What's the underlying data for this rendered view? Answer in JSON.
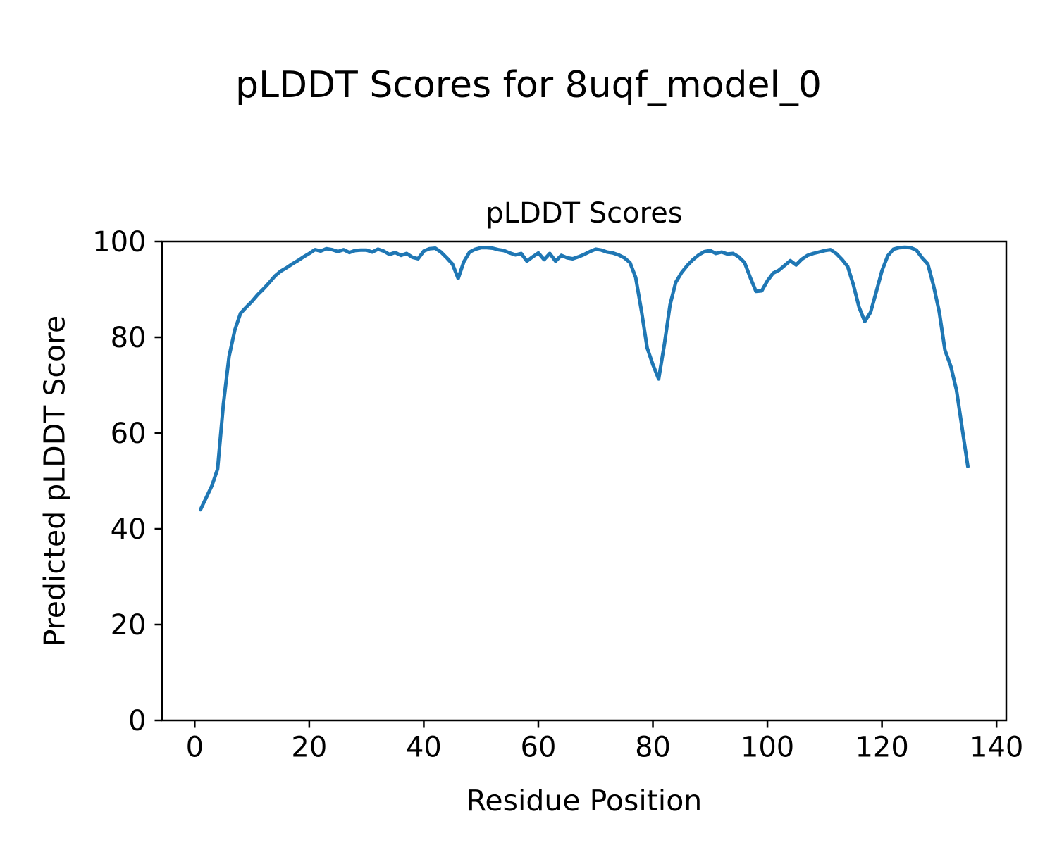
{
  "figure": {
    "suptitle": "pLDDT Scores for 8uqf_model_0",
    "background_color": "#ffffff",
    "text_color": "#000000"
  },
  "chart_data": {
    "type": "line",
    "suptitle": "pLDDT Scores for 8uqf_model_0",
    "title": "pLDDT Scores",
    "xlabel": "Residue Position",
    "ylabel": "Predicted pLDDT Score",
    "x_ticks": [
      0,
      20,
      40,
      60,
      80,
      100,
      120,
      140
    ],
    "y_ticks": [
      0,
      20,
      40,
      60,
      80,
      100
    ],
    "xlim": [
      -5.7,
      141.7
    ],
    "ylim": [
      0,
      100
    ],
    "grid": false,
    "legend": null,
    "line_color": "#1f77b4",
    "line_width": 5,
    "frame_color": "#000000",
    "series": [
      {
        "name": "pLDDT",
        "x": [
          1,
          2,
          3,
          4,
          5,
          6,
          7,
          8,
          9,
          10,
          11,
          12,
          13,
          14,
          15,
          16,
          17,
          18,
          19,
          20,
          21,
          22,
          23,
          24,
          25,
          26,
          27,
          28,
          29,
          30,
          31,
          32,
          33,
          34,
          35,
          36,
          37,
          38,
          39,
          40,
          41,
          42,
          43,
          44,
          45,
          46,
          47,
          48,
          49,
          50,
          51,
          52,
          53,
          54,
          55,
          56,
          57,
          58,
          59,
          60,
          61,
          62,
          63,
          64,
          65,
          66,
          67,
          68,
          69,
          70,
          71,
          72,
          73,
          74,
          75,
          76,
          77,
          78,
          79,
          80,
          81,
          82,
          83,
          84,
          85,
          86,
          87,
          88,
          89,
          90,
          91,
          92,
          93,
          94,
          95,
          96,
          97,
          98,
          99,
          100,
          101,
          102,
          103,
          104,
          105,
          106,
          107,
          108,
          109,
          110,
          111,
          112,
          113,
          114,
          115,
          116,
          117,
          118,
          119,
          120,
          121,
          122,
          123,
          124,
          125,
          126,
          127,
          128,
          129,
          130,
          131,
          132,
          133,
          134,
          135
        ],
        "y": [
          44.0,
          46.5,
          49.0,
          52.5,
          66.0,
          76.0,
          81.5,
          85.0,
          86.3,
          87.5,
          88.9,
          90.1,
          91.4,
          92.8,
          93.8,
          94.5,
          95.3,
          96.0,
          96.8,
          97.5,
          98.3,
          98.0,
          98.5,
          98.3,
          97.9,
          98.3,
          97.7,
          98.1,
          98.2,
          98.2,
          97.8,
          98.4,
          98.0,
          97.3,
          97.7,
          97.1,
          97.5,
          96.7,
          96.4,
          98.0,
          98.5,
          98.6,
          97.8,
          96.6,
          95.3,
          92.3,
          95.8,
          97.8,
          98.4,
          98.7,
          98.7,
          98.6,
          98.3,
          98.1,
          97.6,
          97.2,
          97.5,
          95.9,
          96.8,
          97.6,
          96.2,
          97.5,
          95.9,
          97.1,
          96.6,
          96.4,
          96.8,
          97.3,
          97.9,
          98.4,
          98.2,
          97.8,
          97.6,
          97.2,
          96.6,
          95.6,
          92.5,
          85.5,
          77.8,
          74.3,
          71.3,
          78.5,
          86.8,
          91.5,
          93.5,
          95.0,
          96.2,
          97.2,
          97.9,
          98.1,
          97.5,
          97.8,
          97.4,
          97.5,
          96.8,
          95.6,
          92.5,
          89.6,
          89.7,
          91.8,
          93.4,
          94.0,
          95.0,
          96.0,
          95.1,
          96.3,
          97.1,
          97.5,
          97.8,
          98.1,
          98.3,
          97.5,
          96.3,
          94.8,
          91.0,
          86.3,
          83.3,
          85.2,
          89.5,
          93.9,
          97.0,
          98.4,
          98.7,
          98.8,
          98.7,
          98.2,
          96.6,
          95.3,
          90.8,
          85.3,
          77.3,
          74.0,
          69.0,
          61.0,
          53.0
        ]
      }
    ]
  }
}
